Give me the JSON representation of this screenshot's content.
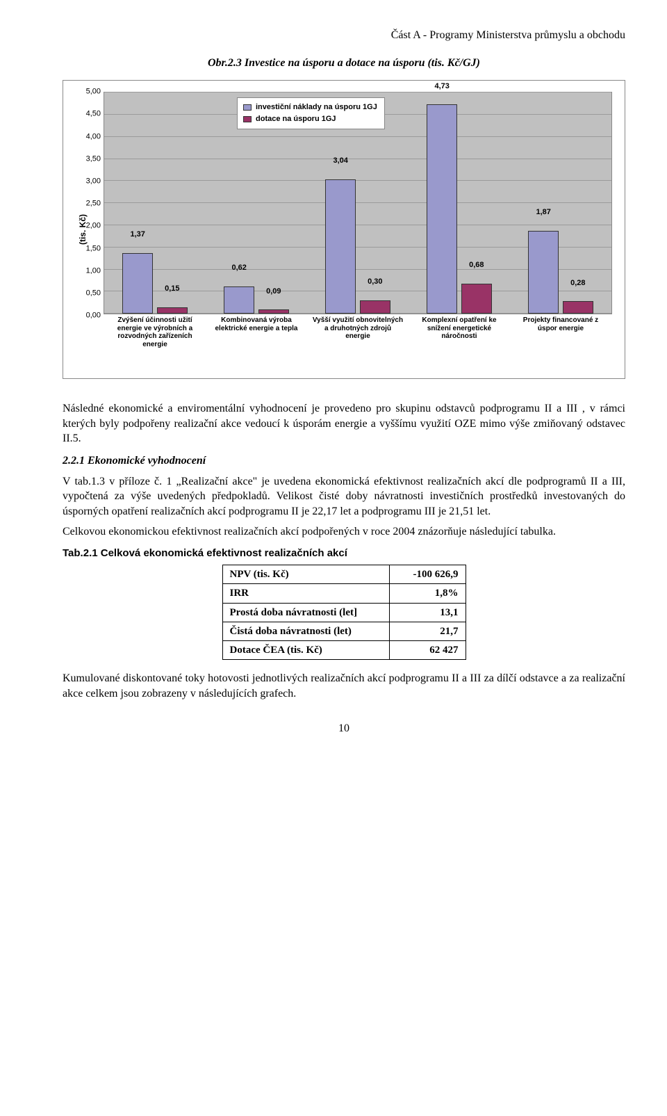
{
  "header_right": "Část A - Programy Ministerstva průmyslu a obchodu",
  "chart_title": "Obr.2.3 Investice na úsporu a dotace na úsporu (tis. Kč/GJ)",
  "chart": {
    "type": "bar",
    "ylabel": "(tis. Kč)",
    "ylim": [
      0,
      5
    ],
    "ytick_step": 0.5,
    "legend": [
      {
        "label": "investiční náklady na úsporu 1GJ",
        "color": "#9999cc"
      },
      {
        "label": "dotace na úsporu 1GJ",
        "color": "#993366"
      }
    ],
    "plot_bg": "#c0c0c0",
    "grid_color": "#9a9a9a",
    "bar_border": "#333333",
    "label_fontsize": 11,
    "categories": [
      "Zvýšení účinnosti užití energie ve výrobních a rozvodných zařízeních energie",
      "Kombinovaná výroba elektrické energie a tepla",
      "Vyšší využití obnovitelných a druhotných zdrojů energie",
      "Komplexní opatření ke snížení energetické náročnosti",
      "Projekty financované z úspor energie"
    ],
    "series": {
      "invest": {
        "color": "#9999cc",
        "values": [
          1.37,
          0.62,
          3.04,
          4.73,
          1.87
        ],
        "labels": [
          "1,37",
          "0,62",
          "3,04",
          "4,73",
          "1,87"
        ]
      },
      "dotace": {
        "color": "#993366",
        "values": [
          0.15,
          0.09,
          0.3,
          0.68,
          0.28
        ],
        "labels": [
          "0,15",
          "0,09",
          "0,30",
          "0,68",
          "0,28"
        ]
      }
    }
  },
  "para1": "Následné ekonomické a enviromentální vyhodnocení je provedeno pro skupinu odstavců podprogramu II a III , v rámci kterých byly podpořeny realizační akce vedoucí k úsporám energie a vyššímu využití OZE mimo výše zmiňovaný odstavec II.5.",
  "section_h": "2.2.1 Ekonomické vyhodnocení",
  "para2": "V tab.1.3 v příloze č. 1 „Realizační akce\" je uvedena ekonomická efektivnost realizačních akcí dle podprogramů II a III, vypočtená za výše uvedených předpokladů. Velikost čisté doby návratnosti investičních prostředků investovaných do úsporných opatření realizačních akcí podprogramu II je 22,17 let a podprogramu III  je 21,51 let.",
  "para3": "Celkovou ekonomickou efektivnost realizačních akcí podpořených v roce 2004 znázorňuje následující tabulka.",
  "table_h": "Tab.2.1 Celková ekonomická efektivnost realizačních akcí",
  "table": {
    "rows": [
      {
        "label": "NPV (tis. Kč)",
        "value": "-100 626,9"
      },
      {
        "label": "IRR",
        "value": "1,8%"
      },
      {
        "label": "Prostá doba návratnosti (let]",
        "value": "13,1"
      },
      {
        "label": "Čistá doba návratnosti (let)",
        "value": "21,7"
      },
      {
        "label": "Dotace ČEA (tis. Kč)",
        "value": "62 427"
      }
    ]
  },
  "para4": "Kumulované diskontované toky hotovosti jednotlivých realizačních akcí podprogramu II a III za dílčí odstavce a za realizační akce celkem jsou zobrazeny v následujících grafech.",
  "page_num": "10"
}
